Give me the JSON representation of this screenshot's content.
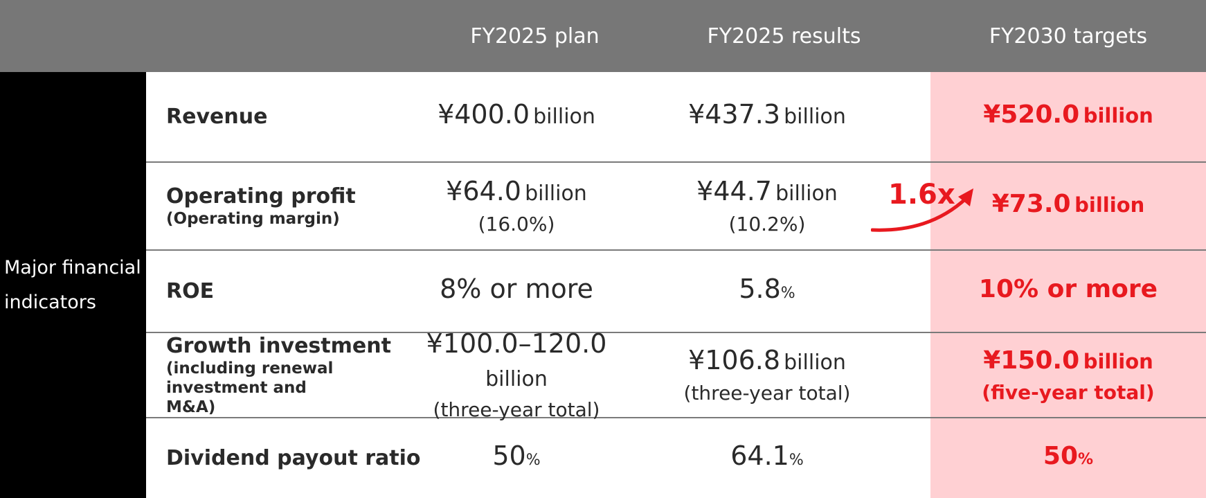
{
  "header": {
    "columns": [
      "FY2025 plan",
      "FY2025 results",
      "FY2030 targets"
    ]
  },
  "side_label": "Major financial\nindicators",
  "multiplier": "1.6x",
  "colors": {
    "header_bg": "#777777",
    "target_bg": "#ffd0d3",
    "target_text": "#e8191f",
    "side_bg": "#000000"
  },
  "rows": [
    {
      "label": "Revenue",
      "sublabel": "",
      "plan": {
        "value": "¥400.0",
        "unit": "billion",
        "note": ""
      },
      "results": {
        "value": "¥437.3",
        "unit": "billion",
        "note": ""
      },
      "target": {
        "value": "¥520.0",
        "unit": "billion",
        "note": ""
      }
    },
    {
      "label": "Operating profit",
      "sublabel": "(Operating margin)",
      "plan": {
        "value": "¥64.0",
        "unit": "billion",
        "note": "(16.0%)"
      },
      "results": {
        "value": "¥44.7",
        "unit": "billion",
        "note": "(10.2%)"
      },
      "target": {
        "value": "¥73.0",
        "unit": "billion",
        "note": ""
      }
    },
    {
      "label": "ROE",
      "sublabel": "",
      "plan": {
        "value": "8% or more",
        "unit": "",
        "note": ""
      },
      "results": {
        "value": "5.8",
        "unit": "%",
        "note": ""
      },
      "target": {
        "value": "10% or more",
        "unit": "",
        "note": ""
      }
    },
    {
      "label": "Growth investment",
      "sublabel": "(including renewal investment and M&A)",
      "plan": {
        "value": "¥100.0–120.0",
        "unit": "billion",
        "note": "(three-year total)"
      },
      "results": {
        "value": "¥106.8",
        "unit": "billion",
        "note": "(three-year total)"
      },
      "target": {
        "value": "¥150.0",
        "unit": "billion",
        "note": "(five-year total)"
      }
    },
    {
      "label": "Dividend payout ratio",
      "sublabel": "",
      "plan": {
        "value": "50",
        "unit": "%",
        "note": ""
      },
      "results": {
        "value": "64.1",
        "unit": "%",
        "note": ""
      },
      "target": {
        "value": "50",
        "unit": "%",
        "note": ""
      }
    }
  ]
}
